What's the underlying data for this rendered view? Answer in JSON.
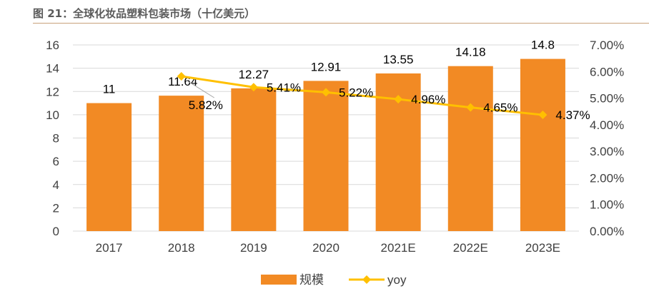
{
  "figure_title": "图 21：全球化妆品塑料包装市场（十亿美元）",
  "colors": {
    "bar": "#F28A24",
    "line": "#FFC000",
    "grid": "#D9D9D9",
    "text": "#404040",
    "rule": "#C9A27A"
  },
  "chart_data": {
    "type": "bar",
    "categories": [
      "2017",
      "2018",
      "2019",
      "2020",
      "2021E",
      "2022E",
      "2023E"
    ],
    "series": [
      {
        "name": "规模",
        "type": "bar",
        "axis": "left",
        "values": [
          11,
          11.64,
          12.27,
          12.91,
          13.55,
          14.18,
          14.8
        ],
        "labels": [
          "11",
          "11.64",
          "12.27",
          "12.91",
          "13.55",
          "14.18",
          "14.8"
        ]
      },
      {
        "name": "yoy",
        "type": "line",
        "axis": "right",
        "values": [
          null,
          5.82,
          5.41,
          5.22,
          4.96,
          4.65,
          4.37
        ],
        "labels": [
          "",
          "5.82%",
          "5.41%",
          "5.22%",
          "4.96%",
          "4.65%",
          "4.37%"
        ]
      }
    ],
    "y_left": {
      "min": 0,
      "max": 16,
      "ticks": [
        "0",
        "2",
        "4",
        "6",
        "8",
        "10",
        "12",
        "14",
        "16"
      ]
    },
    "y_right": {
      "min": 0,
      "max": 7,
      "ticks": [
        "0.00%",
        "1.00%",
        "2.00%",
        "3.00%",
        "4.00%",
        "5.00%",
        "6.00%",
        "7.00%"
      ]
    },
    "grid": true,
    "legend": "bottom"
  }
}
